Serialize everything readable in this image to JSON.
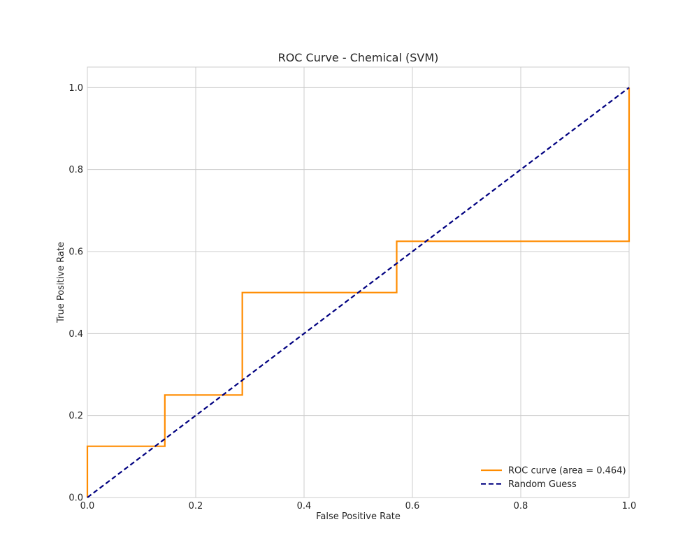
{
  "chart_data": {
    "type": "line",
    "title": "ROC Curve - Chemical (SVM)",
    "xlabel": "False Positive Rate",
    "ylabel": "True Positive Rate",
    "xlim": [
      0.0,
      1.0
    ],
    "ylim": [
      0.0,
      1.05
    ],
    "grid": true,
    "legend_position": "lower-right",
    "x_ticks": [
      0.0,
      0.2,
      0.4,
      0.6,
      0.8,
      1.0
    ],
    "y_ticks": [
      0.0,
      0.2,
      0.4,
      0.6,
      0.8,
      1.0
    ],
    "x_tick_labels": [
      "0.0",
      "0.2",
      "0.4",
      "0.6",
      "0.8",
      "1.0"
    ],
    "y_tick_labels": [
      "0.0",
      "0.2",
      "0.4",
      "0.6",
      "0.8",
      "1.0"
    ],
    "series": [
      {
        "name": "ROC curve (area = 0.464)",
        "color": "#ff8c00",
        "style": "solid",
        "x": [
          0.0,
          0.0,
          0.0,
          0.143,
          0.143,
          0.286,
          0.286,
          0.571,
          0.571,
          1.0,
          1.0
        ],
        "y": [
          0.0,
          0.125,
          0.125,
          0.125,
          0.25,
          0.25,
          0.5,
          0.5,
          0.625,
          0.625,
          1.0
        ]
      },
      {
        "name": "Random Guess",
        "color": "#000080",
        "style": "dashed",
        "x": [
          0.0,
          1.0
        ],
        "y": [
          0.0,
          1.0
        ]
      }
    ]
  }
}
